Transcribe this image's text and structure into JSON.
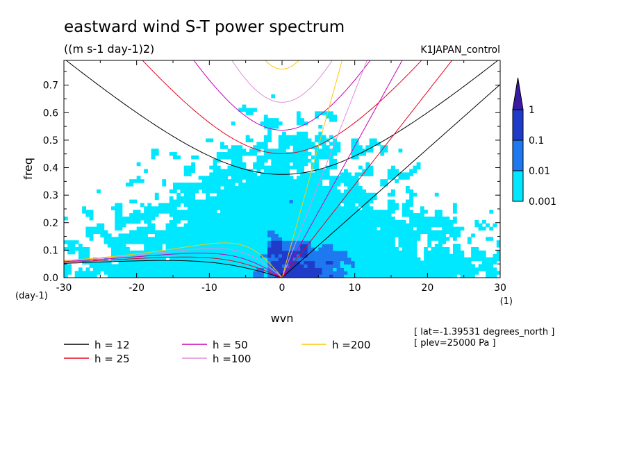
{
  "title": "eastward wind S-T power spectrum",
  "units": "((m s-1 day-1)2)",
  "experiment": "K1JAPAN_control",
  "info_lines": [
    "[ lat=-1.39531 degrees_north ]",
    "[ plev=25000 Pa ]"
  ],
  "chart_data": {
    "type": "heatmap",
    "xlabel": "wvn",
    "ylabel": "freq",
    "x_unit": "(1)",
    "y_unit": "(day-1)",
    "xlim": [
      -30,
      30
    ],
    "ylim": [
      0,
      0.79
    ],
    "x_ticks": [
      -30,
      -20,
      -10,
      0,
      10,
      20,
      30
    ],
    "y_ticks": [
      0.0,
      0.1,
      0.2,
      0.3,
      0.4,
      0.5,
      0.6,
      0.7
    ],
    "y_tick_labels": [
      "0.0",
      "0.1",
      "0.2",
      "0.3",
      "0.4",
      "0.5",
      "0.6",
      "0.7"
    ],
    "contour_levels": [
      0.001,
      0.01,
      0.1,
      1
    ],
    "level_labels": [
      "0.001",
      "0.01",
      "0.1",
      "1"
    ],
    "level_colors": [
      "#00e8ff",
      "#1e78f0",
      "#1e3cc8",
      "#3a1aa0"
    ],
    "dispersion_curves": [
      {
        "label": "h = 12",
        "h": 12,
        "color": "#000000"
      },
      {
        "label": "h = 25",
        "h": 25,
        "color": "#e8001c"
      },
      {
        "label": "h = 50",
        "h": 50,
        "color": "#c800b4"
      },
      {
        "label": "h =100",
        "h": 100,
        "color": "#e18cdc"
      },
      {
        "label": "h =200",
        "h": 200,
        "color": "#ffc800"
      }
    ]
  }
}
